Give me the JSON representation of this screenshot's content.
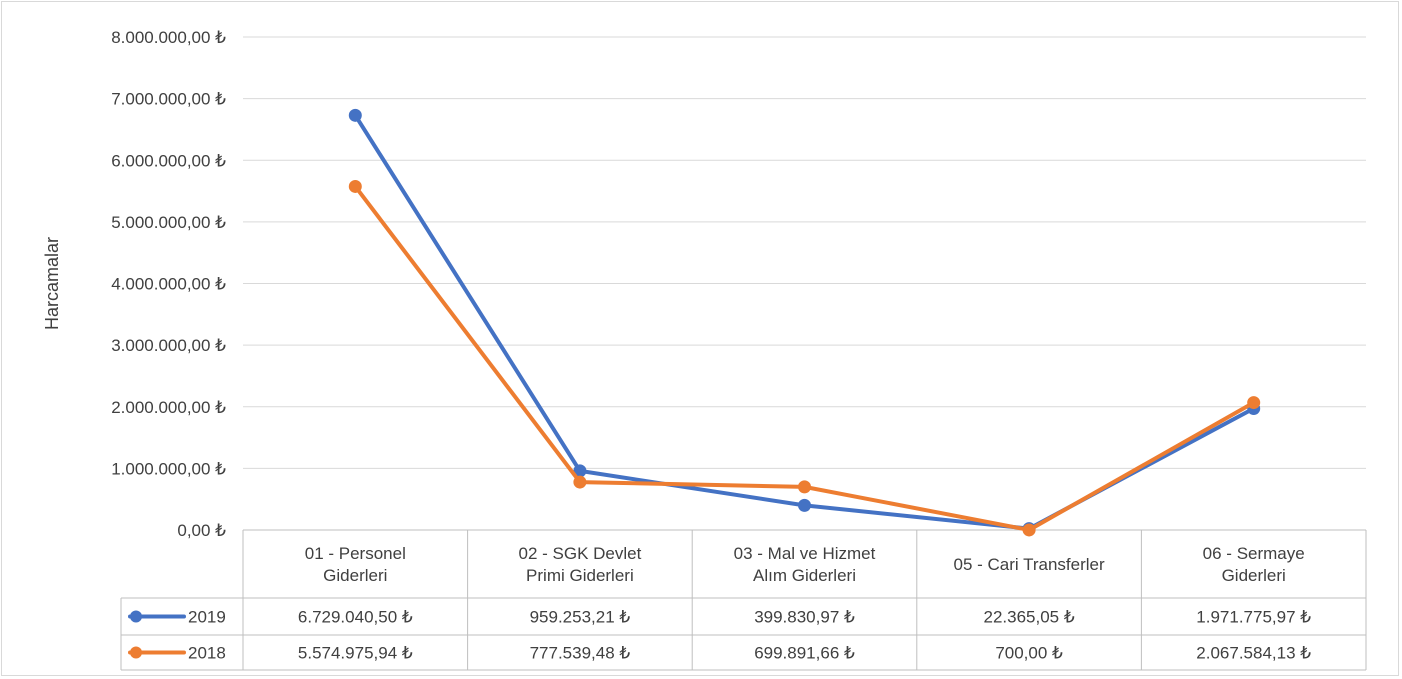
{
  "chart_data": {
    "type": "line",
    "ylabel": "Harcamalar",
    "xlabel": "",
    "title": "",
    "ylim": [
      0,
      8000000
    ],
    "yticks": [
      0,
      1000000,
      2000000,
      3000000,
      4000000,
      5000000,
      6000000,
      7000000,
      8000000
    ],
    "ytick_labels": [
      "0,00 ₺",
      "1.000.000,00 ₺",
      "2.000.000,00 ₺",
      "3.000.000,00 ₺",
      "4.000.000,00 ₺",
      "5.000.000,00 ₺",
      "6.000.000,00 ₺",
      "7.000.000,00 ₺",
      "8.000.000,00 ₺"
    ],
    "categories": [
      [
        "01 - Personel",
        "Giderleri"
      ],
      [
        "02 - SGK Devlet",
        "Primi Giderleri"
      ],
      [
        "03 - Mal ve Hizmet",
        "Alım Giderleri"
      ],
      [
        "05 - Cari Transferler"
      ],
      [
        "06 - Sermaye",
        "Giderleri"
      ]
    ],
    "grid": true,
    "legend": "data-table",
    "series": [
      {
        "name": "2019",
        "color": "#4472c4",
        "values": [
          6729040.5,
          959253.21,
          399830.97,
          22365.05,
          1971775.97
        ],
        "labels": [
          "6.729.040,50 ₺",
          "959.253,21 ₺",
          "399.830,97 ₺",
          "22.365,05 ₺",
          "1.971.775,97 ₺"
        ]
      },
      {
        "name": "2018",
        "color": "#ed7d31",
        "values": [
          5574975.94,
          777539.48,
          699891.66,
          700.0,
          2067584.13
        ],
        "labels": [
          "5.574.975,94 ₺",
          "777.539,48 ₺",
          "699.891,66 ₺",
          "700,00 ₺",
          "2.067.584,13 ₺"
        ]
      }
    ]
  }
}
